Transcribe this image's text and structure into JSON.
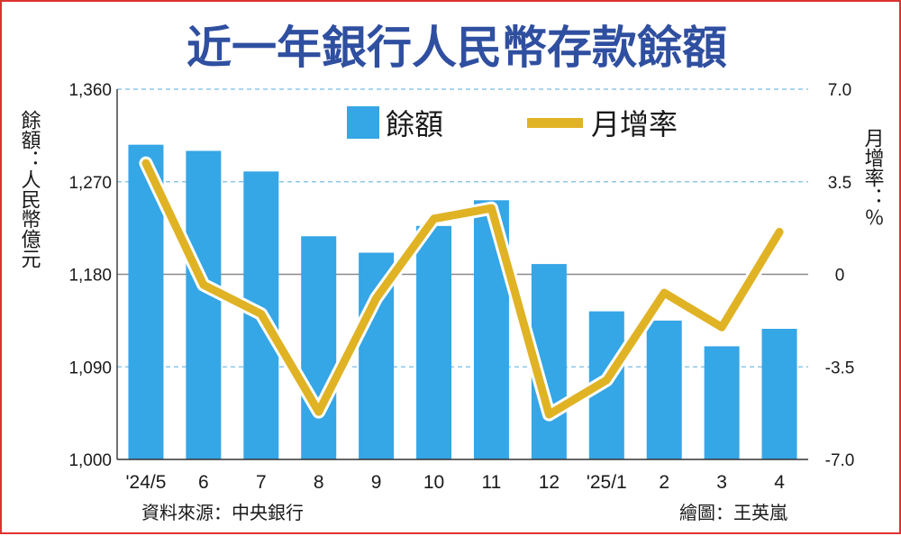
{
  "chart_data": {
    "type": "bar+line",
    "title": "近一年銀行人民幣存款餘額",
    "categories": [
      "'24/5",
      "6",
      "7",
      "8",
      "9",
      "10",
      "11",
      "12",
      "'25/1",
      "2",
      "3",
      "4"
    ],
    "series": [
      {
        "name": "餘額",
        "type": "bar",
        "axis": "left",
        "color": "#35a6e6",
        "values": [
          1306,
          1300,
          1280,
          1217,
          1201,
          1227,
          1252,
          1190,
          1144,
          1135,
          1110,
          1127
        ]
      },
      {
        "name": "月增率",
        "type": "line",
        "axis": "right",
        "color": "#e0b325",
        "values": [
          4.2,
          -0.4,
          -1.5,
          -5.2,
          -0.9,
          2.1,
          2.5,
          -5.3,
          -4.0,
          -0.7,
          -2.0,
          1.6
        ]
      }
    ],
    "y_left": {
      "label": "餘額：人民幣億元",
      "ylim": [
        1000,
        1360
      ],
      "ticks": [
        "1,000",
        "1,090",
        "1,180",
        "1,270",
        "1,360"
      ],
      "tick_values": [
        1000,
        1090,
        1180,
        1270,
        1360
      ]
    },
    "y_right": {
      "label": "月增率：％",
      "ylim": [
        -7,
        7
      ],
      "ticks": [
        "-7.0",
        "-3.5",
        "0",
        "3.5",
        "7.0"
      ],
      "tick_values": [
        -7,
        -3.5,
        0,
        3.5,
        7
      ]
    },
    "legend_position": "top-center",
    "grid": "dashed horizontal"
  },
  "footer": {
    "source": "資料來源：中央銀行",
    "credit": "繪圖：王英嵐"
  },
  "colors": {
    "title": "#2f4fa0",
    "border": "#e03030",
    "gridline": "#8fc6e8",
    "zeroline": "#8a8a8a"
  }
}
